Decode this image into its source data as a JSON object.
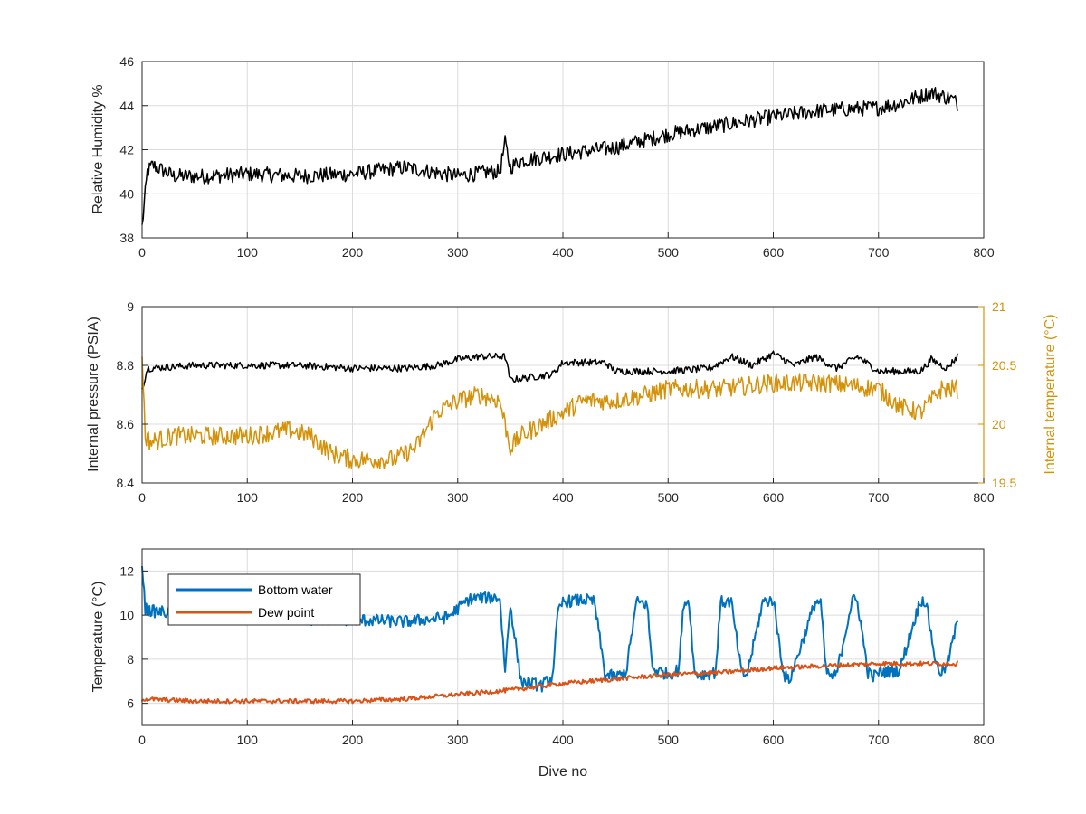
{
  "chart_data": [
    {
      "type": "line",
      "x_range": [
        0,
        800
      ],
      "ylim": [
        38,
        46
      ],
      "grid": true,
      "xticks": [
        "0",
        "100",
        "200",
        "300",
        "400",
        "500",
        "600",
        "700",
        "800"
      ],
      "yticks": [
        "38",
        "40",
        "42",
        "44",
        "46"
      ],
      "xlabel": "",
      "ylabel": "Relative Humidity %",
      "series": [
        {
          "color": "#000000",
          "x": [
            0,
            5,
            10,
            30,
            60,
            100,
            150,
            200,
            250,
            300,
            330,
            340,
            345,
            350,
            360,
            400,
            450,
            500,
            550,
            600,
            650,
            700,
            720,
            750,
            770,
            775
          ],
          "y": [
            38.5,
            41.0,
            41.3,
            40.8,
            40.8,
            40.9,
            40.8,
            40.9,
            41.2,
            40.8,
            41.0,
            41.0,
            42.3,
            41.2,
            41.5,
            41.8,
            42.1,
            42.7,
            43.1,
            43.5,
            43.8,
            43.9,
            44.1,
            44.6,
            44.3,
            44.1
          ]
        }
      ]
    },
    {
      "type": "line",
      "x_range": [
        0,
        800
      ],
      "ylim": [
        8.4,
        9
      ],
      "y2lim": [
        19.5,
        21
      ],
      "grid": true,
      "xticks": [
        "0",
        "100",
        "200",
        "300",
        "400",
        "500",
        "600",
        "700",
        "800"
      ],
      "yticks": [
        "8.4",
        "8.6",
        "8.8",
        "9"
      ],
      "y2ticks": [
        "19.5",
        "20",
        "20.5",
        "21"
      ],
      "xlabel": "",
      "ylabel": "Internal pressure (PSIA)",
      "y2label": "Internal temperature (°C)",
      "series": [
        {
          "axis": "left",
          "color": "#000000",
          "x": [
            0,
            5,
            50,
            100,
            150,
            200,
            250,
            280,
            300,
            320,
            345,
            350,
            390,
            400,
            440,
            450,
            500,
            540,
            560,
            580,
            600,
            620,
            640,
            660,
            680,
            700,
            740,
            750,
            765,
            775
          ],
          "y": [
            8.72,
            8.79,
            8.8,
            8.8,
            8.8,
            8.79,
            8.79,
            8.8,
            8.82,
            8.83,
            8.83,
            8.75,
            8.77,
            8.81,
            8.81,
            8.78,
            8.78,
            8.79,
            8.83,
            8.8,
            8.84,
            8.8,
            8.83,
            8.79,
            8.83,
            8.78,
            8.78,
            8.82,
            8.79,
            8.83
          ]
        },
        {
          "axis": "right",
          "color": "#d4920a",
          "x": [
            0,
            3,
            8,
            30,
            60,
            100,
            140,
            160,
            180,
            200,
            240,
            260,
            280,
            300,
            320,
            340,
            350,
            360,
            400,
            420,
            450,
            480,
            500,
            550,
            600,
            650,
            700,
            720,
            740,
            760,
            775
          ],
          "y": [
            20.6,
            19.9,
            19.85,
            19.9,
            19.9,
            19.9,
            19.95,
            19.9,
            19.75,
            19.7,
            19.7,
            19.8,
            20.1,
            20.2,
            20.25,
            20.2,
            19.8,
            19.9,
            20.1,
            20.2,
            20.2,
            20.25,
            20.3,
            20.3,
            20.35,
            20.35,
            20.3,
            20.15,
            20.1,
            20.3,
            20.3
          ]
        }
      ]
    },
    {
      "type": "line",
      "x_range": [
        0,
        800
      ],
      "ylim": [
        5,
        13
      ],
      "grid": true,
      "xticks": [
        "0",
        "100",
        "200",
        "300",
        "400",
        "500",
        "600",
        "700",
        "800"
      ],
      "yticks": [
        "6",
        "8",
        "10",
        "12"
      ],
      "xlabel": "Dive no",
      "ylabel": "Temperature (°C)",
      "legend": "top-left",
      "series": [
        {
          "name": "Bottom water",
          "color": "#0072bd",
          "x": [
            0,
            3,
            6,
            30,
            60,
            100,
            150,
            200,
            250,
            290,
            300,
            310,
            320,
            340,
            345,
            350,
            360,
            380,
            390,
            395,
            400,
            420,
            430,
            440,
            450,
            460,
            470,
            480,
            485,
            500,
            510,
            515,
            520,
            525,
            530,
            545,
            550,
            560,
            570,
            575,
            590,
            600,
            610,
            615,
            640,
            645,
            650,
            655,
            660,
            675,
            680,
            690,
            695,
            700,
            720,
            740,
            745,
            755,
            760,
            765,
            775
          ],
          "y": [
            12.3,
            10.3,
            10.2,
            10.1,
            10.0,
            9.9,
            9.8,
            9.8,
            9.7,
            9.9,
            10.3,
            10.7,
            10.8,
            10.8,
            7.5,
            10.5,
            7.0,
            6.8,
            7.2,
            10.0,
            10.6,
            10.7,
            10.6,
            7.3,
            7.2,
            7.4,
            10.6,
            10.5,
            7.6,
            7.3,
            7.5,
            10.6,
            10.6,
            7.4,
            7.3,
            7.4,
            10.6,
            10.6,
            7.3,
            7.3,
            10.6,
            10.7,
            7.3,
            7.0,
            10.6,
            10.6,
            7.5,
            7.2,
            7.3,
            10.7,
            10.6,
            7.4,
            7.2,
            7.4,
            7.5,
            10.7,
            10.6,
            7.7,
            7.4,
            7.7,
            9.7
          ]
        },
        {
          "name": "Dew point",
          "color": "#d95319",
          "x": [
            0,
            50,
            100,
            150,
            200,
            250,
            300,
            350,
            400,
            450,
            500,
            550,
            600,
            650,
            700,
            750,
            775
          ],
          "y": [
            6.2,
            6.1,
            6.1,
            6.1,
            6.1,
            6.2,
            6.4,
            6.6,
            6.9,
            7.1,
            7.3,
            7.4,
            7.6,
            7.7,
            7.8,
            7.8,
            7.8
          ]
        }
      ]
    }
  ]
}
